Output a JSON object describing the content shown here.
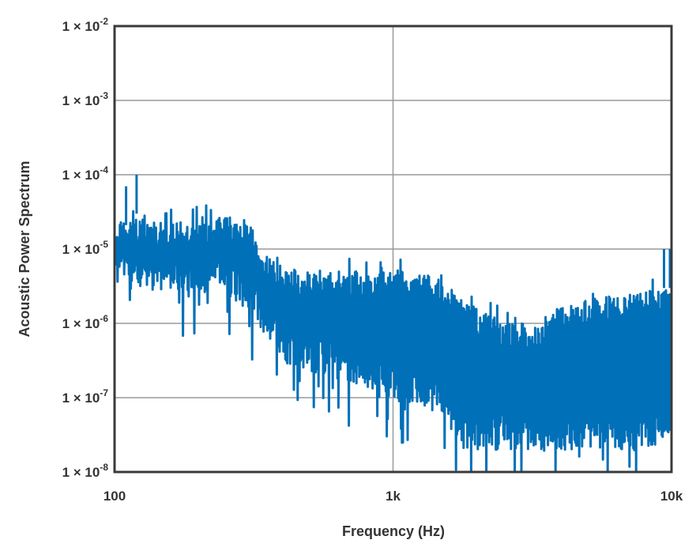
{
  "chart_data": {
    "type": "line",
    "title": "",
    "xlabel": "Frequency (Hz)",
    "ylabel": "Acoustic Power Spectrum",
    "x_scale": "log",
    "y_scale": "log",
    "xlim": [
      100,
      10000
    ],
    "ylim": [
      1e-08,
      0.01
    ],
    "grid": true,
    "x_ticks": [
      {
        "value": 100,
        "label": "100"
      },
      {
        "value": 1000,
        "label": "1k"
      },
      {
        "value": 10000,
        "label": "10k"
      }
    ],
    "y_ticks": [
      {
        "value": 0.01,
        "mantissa": "1 × 10",
        "exp": "-2"
      },
      {
        "value": 0.001,
        "mantissa": "1 × 10",
        "exp": "-3"
      },
      {
        "value": 0.0001,
        "mantissa": "1 × 10",
        "exp": "-4"
      },
      {
        "value": 1e-05,
        "mantissa": "1 × 10",
        "exp": "-5"
      },
      {
        "value": 1e-06,
        "mantissa": "1 × 10",
        "exp": "-6"
      },
      {
        "value": 1e-07,
        "mantissa": "1 × 10",
        "exp": "-7"
      },
      {
        "value": 1e-08,
        "mantissa": "1 × 10",
        "exp": "-8"
      }
    ],
    "series_color": "#0070b8",
    "upper_envelope": [
      [
        100,
        2.5e-05
      ],
      [
        200,
        2.5e-05
      ],
      [
        300,
        2.8e-05
      ],
      [
        340,
        1e-05
      ],
      [
        400,
        5e-06
      ],
      [
        1000,
        5e-06
      ],
      [
        1200,
        5e-06
      ],
      [
        1600,
        3.5e-06
      ],
      [
        1800,
        2e-06
      ],
      [
        2200,
        1.3e-06
      ],
      [
        2600,
        1e-06
      ],
      [
        3300,
        1e-06
      ],
      [
        4000,
        1.8e-06
      ],
      [
        6000,
        2.3e-06
      ],
      [
        10000,
        3e-06
      ]
    ],
    "lower_envelope": [
      [
        100,
        3e-06
      ],
      [
        250,
        2.5e-06
      ],
      [
        300,
        1.5e-06
      ],
      [
        400,
        3e-07
      ],
      [
        700,
        1.5e-07
      ],
      [
        1000,
        1e-07
      ],
      [
        1500,
        6e-08
      ],
      [
        1800,
        2e-08
      ],
      [
        10000,
        2e-08
      ]
    ],
    "spikes": [
      [
        110,
        7e-05
      ],
      [
        120,
        0.0001
      ],
      [
        9400,
        1e-05
      ],
      [
        10000,
        1e-05
      ]
    ]
  }
}
